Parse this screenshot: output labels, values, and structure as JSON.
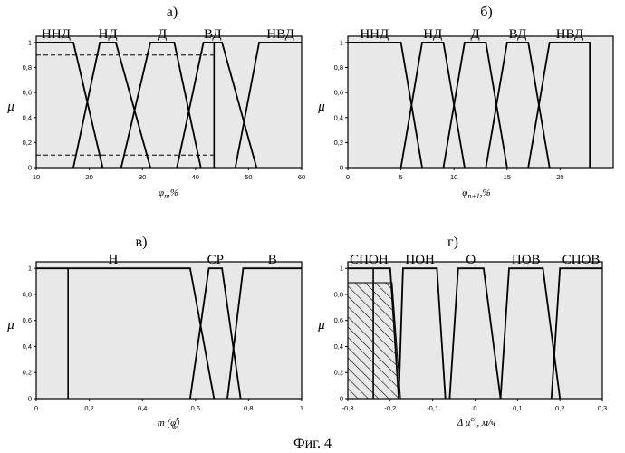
{
  "caption": "Фиг. 4",
  "chart_data": [
    {
      "id": "a",
      "panel_label": "а)",
      "type": "line",
      "ylabel": "μ",
      "xlabel": "φ_n, %",
      "xlabel_parts": {
        "symbol": "φ",
        "sub": "n",
        "suffix": ",%"
      },
      "xlim": [
        10,
        60
      ],
      "ylim": [
        0,
        1.05
      ],
      "xticks": [
        10,
        20,
        30,
        40,
        50,
        60
      ],
      "yticks": [
        0,
        0.2,
        0.4,
        0.6,
        0.8,
        1
      ],
      "ytick_labels": [
        "0",
        "0,2",
        "0,4",
        "0,6",
        "0,8",
        "1"
      ],
      "series": [
        {
          "name": "ННД",
          "points": [
            [
              10,
              1
            ],
            [
              17,
              1
            ],
            [
              22.5,
              0
            ]
          ]
        },
        {
          "name": "НД",
          "points": [
            [
              17,
              0
            ],
            [
              22,
              1
            ],
            [
              25,
              1
            ],
            [
              31.5,
              0
            ]
          ]
        },
        {
          "name": "Д",
          "points": [
            [
              26,
              0
            ],
            [
              31.5,
              1
            ],
            [
              36,
              1
            ],
            [
              41,
              0
            ]
          ]
        },
        {
          "name": "ВД",
          "points": [
            [
              36.5,
              0
            ],
            [
              41.5,
              1
            ],
            [
              45,
              1
            ],
            [
              51.5,
              0
            ]
          ]
        },
        {
          "name": "НВД",
          "points": [
            [
              47.5,
              0
            ],
            [
              52,
              1
            ],
            [
              60,
              1
            ]
          ]
        }
      ],
      "dashed_levels": [
        0.9,
        0.1
      ],
      "dashed_until_x": 43.5,
      "marker_x": 43.5
    },
    {
      "id": "b",
      "panel_label": "б)",
      "type": "line",
      "ylabel": "μ",
      "xlabel": "φ_{n+1}, %",
      "xlabel_parts": {
        "symbol": "φ",
        "sub": "n+1",
        "suffix": ",%"
      },
      "xlim": [
        0,
        25
      ],
      "ylim": [
        0,
        1.05
      ],
      "xticks": [
        0,
        5,
        10,
        15,
        20
      ],
      "yticks": [
        0,
        0.2,
        0.4,
        0.6,
        0.8,
        1
      ],
      "ytick_labels": [
        "0",
        "0,2",
        "0,4",
        "0,6",
        "0,8",
        "1"
      ],
      "series": [
        {
          "name": "ННД",
          "points": [
            [
              0,
              1
            ],
            [
              5,
              1
            ],
            [
              7,
              0
            ]
          ]
        },
        {
          "name": "НД",
          "points": [
            [
              5,
              0
            ],
            [
              7,
              1
            ],
            [
              9,
              1
            ],
            [
              11,
              0
            ]
          ]
        },
        {
          "name": "Д",
          "points": [
            [
              9,
              0
            ],
            [
              11,
              1
            ],
            [
              13,
              1
            ],
            [
              15,
              0
            ]
          ]
        },
        {
          "name": "ВД",
          "points": [
            [
              13,
              0
            ],
            [
              15,
              1
            ],
            [
              17,
              1
            ],
            [
              19,
              0
            ]
          ]
        },
        {
          "name": "НВД",
          "points": [
            [
              17,
              0
            ],
            [
              19,
              1
            ],
            [
              22.8,
              1
            ],
            [
              22.8,
              0
            ]
          ]
        }
      ]
    },
    {
      "id": "c",
      "panel_label": "в)",
      "type": "line",
      "ylabel": "μ",
      "xlabel": "m(φ_k^к)",
      "xlabel_parts": {
        "symbol": "m (φ",
        "sub": "k",
        "sup": "к",
        "suffix": ")"
      },
      "xlim": [
        0,
        1
      ],
      "ylim": [
        0,
        1.05
      ],
      "xticks": [
        0,
        0.2,
        0.4,
        0.6,
        0.8,
        1
      ],
      "xtick_labels": [
        "0",
        "0,2",
        "0,4",
        "0,6",
        "0,8",
        "1"
      ],
      "yticks": [
        0,
        0.2,
        0.4,
        0.6,
        0.8,
        1
      ],
      "ytick_labels": [
        "0",
        "0,2",
        "0,4",
        "0,6",
        "0,8",
        "1"
      ],
      "series": [
        {
          "name": "Н",
          "points": [
            [
              0,
              1
            ],
            [
              0.58,
              1
            ],
            [
              0.67,
              0
            ]
          ]
        },
        {
          "name": "СР",
          "points": [
            [
              0.58,
              0
            ],
            [
              0.65,
              1
            ],
            [
              0.7,
              1
            ],
            [
              0.77,
              0
            ]
          ]
        },
        {
          "name": "В",
          "points": [
            [
              0.72,
              0
            ],
            [
              0.78,
              1
            ],
            [
              1,
              1
            ]
          ]
        }
      ],
      "marker_x": 0.12
    },
    {
      "id": "d",
      "panel_label": "г)",
      "type": "line",
      "ylabel": "μ",
      "xlabel": "Δu^сл, м/ч",
      "xlabel_parts": {
        "symbol": "Δ u",
        "sup": "сл",
        "suffix": ", м/ч"
      },
      "xlim": [
        -0.3,
        0.3
      ],
      "ylim": [
        0,
        1.05
      ],
      "xticks": [
        -0.3,
        -0.2,
        -0.1,
        0,
        0.1,
        0.2,
        0.3
      ],
      "xtick_labels": [
        "-0,3",
        "-0,2",
        "-0,1",
        "0",
        "0,1",
        "0,2",
        "0,3"
      ],
      "yticks": [
        0,
        0.2,
        0.4,
        0.6,
        0.8,
        1
      ],
      "ytick_labels": [
        "0",
        "0,2",
        "0,4",
        "0,6",
        "0,8",
        "1"
      ],
      "series": [
        {
          "name": "СПОН",
          "points": [
            [
              -0.3,
              1
            ],
            [
              -0.2,
              1
            ],
            [
              -0.18,
              0
            ]
          ]
        },
        {
          "name": "ПОН",
          "points": [
            [
              -0.18,
              0
            ],
            [
              -0.17,
              1
            ],
            [
              -0.09,
              1
            ],
            [
              -0.07,
              0
            ]
          ]
        },
        {
          "name": "О",
          "points": [
            [
              -0.06,
              0
            ],
            [
              -0.04,
              1
            ],
            [
              0.02,
              1
            ],
            [
              0.06,
              0
            ]
          ]
        },
        {
          "name": "ПОВ",
          "points": [
            [
              0.06,
              0
            ],
            [
              0.08,
              1
            ],
            [
              0.16,
              1
            ],
            [
              0.2,
              0
            ]
          ]
        },
        {
          "name": "СПОВ",
          "points": [
            [
              0.18,
              0
            ],
            [
              0.2,
              1
            ],
            [
              0.3,
              1
            ]
          ]
        }
      ],
      "hatched_region": {
        "level": 0.89,
        "x_from": -0.3,
        "x_to": -0.2
      },
      "marker_x": -0.24
    }
  ]
}
